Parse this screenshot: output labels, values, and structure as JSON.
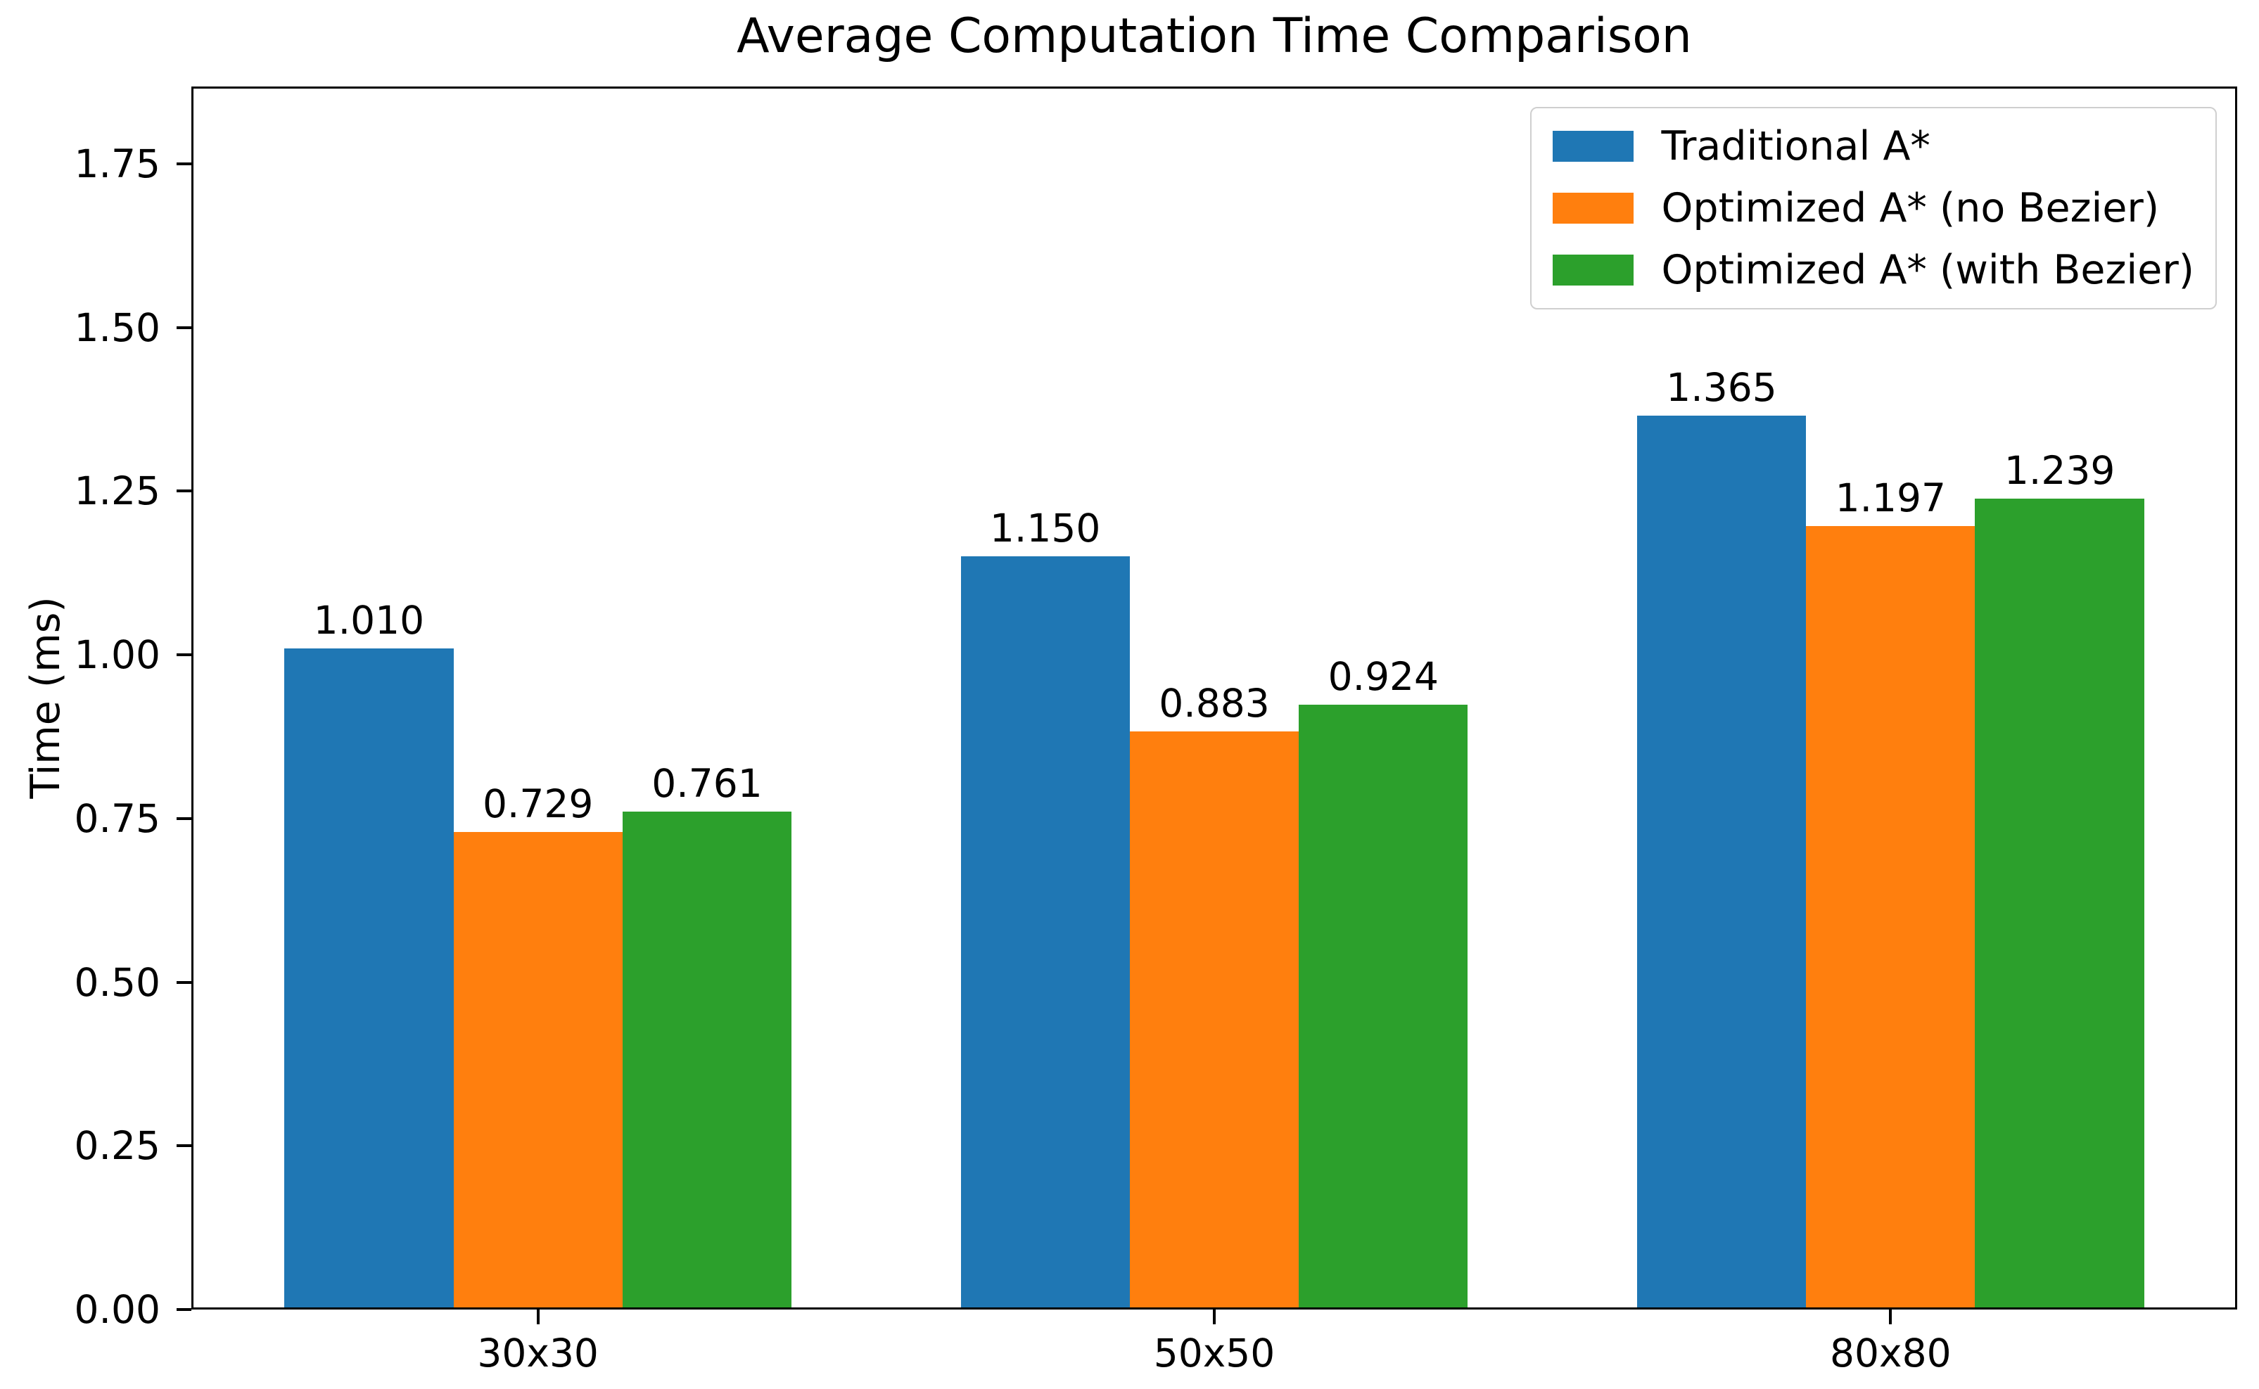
{
  "chart_data": {
    "type": "bar",
    "title": "Average Computation Time Comparison",
    "xlabel": "",
    "ylabel": "Time (ms)",
    "categories": [
      "30x30",
      "50x50",
      "80x80"
    ],
    "series": [
      {
        "name": "Traditional A*",
        "color": "#1f77b4",
        "values": [
          1.01,
          1.15,
          1.365
        ],
        "value_labels": [
          "1.010",
          "1.150",
          "1.365"
        ]
      },
      {
        "name": "Optimized A* (no Bezier)",
        "color": "#ff7f0e",
        "values": [
          0.729,
          0.883,
          1.197
        ],
        "value_labels": [
          "0.729",
          "0.883",
          "1.197"
        ]
      },
      {
        "name": "Optimized A* (with Bezier)",
        "color": "#2ca02c",
        "values": [
          0.761,
          0.924,
          1.239
        ],
        "value_labels": [
          "0.761",
          "0.924",
          "1.239"
        ]
      }
    ],
    "ylim": [
      0,
      1.868
    ],
    "yticks": [
      0.0,
      0.25,
      0.5,
      0.75,
      1.0,
      1.25,
      1.5,
      1.75
    ],
    "ytick_labels": [
      "0.00",
      "0.25",
      "0.50",
      "0.75",
      "1.00",
      "1.25",
      "1.50",
      "1.75"
    ],
    "xlim": [
      -0.5125,
      2.5125
    ],
    "bar_width": 0.25,
    "series_offsets": [
      -0.25,
      0,
      0.25
    ],
    "grid": false,
    "legend_position": "upper right",
    "legend_entries": [
      "Traditional A*",
      "Optimized A* (no Bezier)",
      "Optimized A* (with Bezier)"
    ]
  }
}
